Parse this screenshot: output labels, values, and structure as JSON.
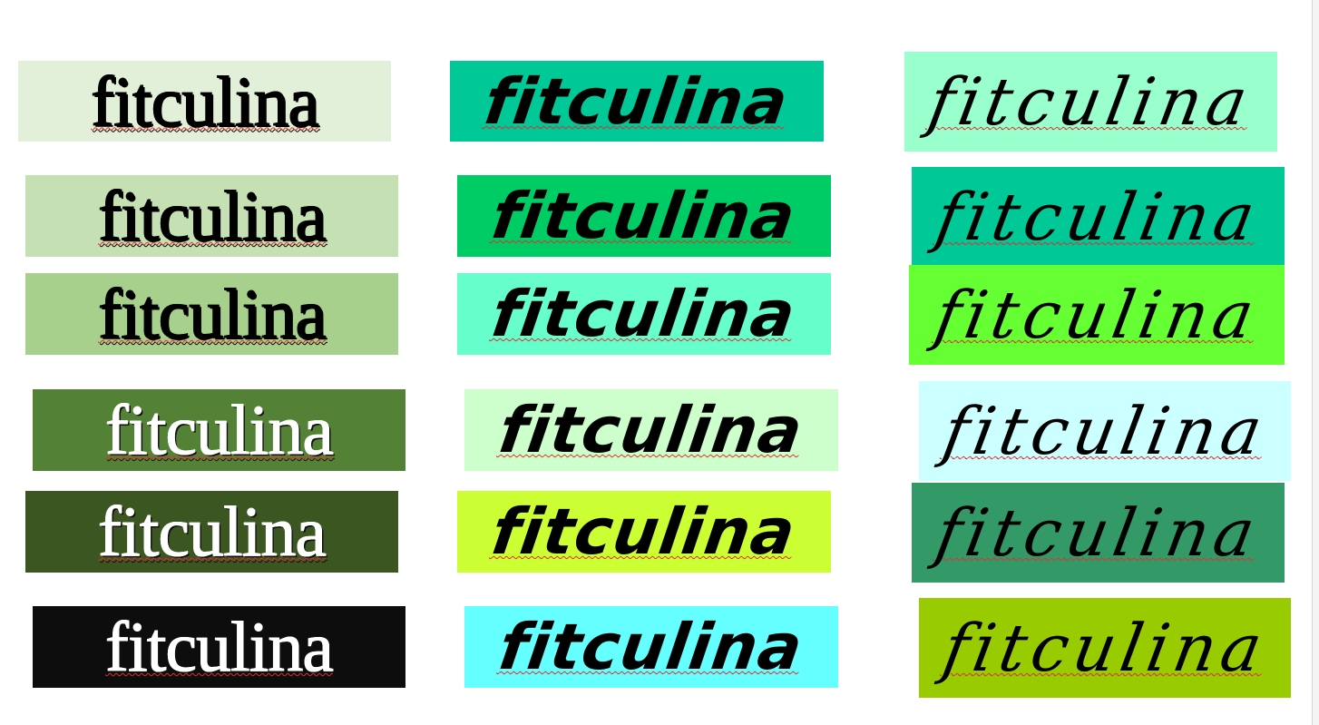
{
  "swatches": [
    {
      "column": 1,
      "row": 1,
      "label": "fitculina",
      "background": "#e2efd9",
      "text_color": "#000000"
    },
    {
      "column": 1,
      "row": 2,
      "label": "fitculina",
      "background": "#c5e0b3",
      "text_color": "#000000"
    },
    {
      "column": 1,
      "row": 3,
      "label": "fitculina",
      "background": "#a8d08d",
      "text_color": "#000000"
    },
    {
      "column": 1,
      "row": 4,
      "label": "fitculina",
      "background": "#538135",
      "text_color": "#ffffff"
    },
    {
      "column": 1,
      "row": 5,
      "label": "fitculina",
      "background": "#3c5622",
      "text_color": "#ffffff"
    },
    {
      "column": 1,
      "row": 6,
      "label": "fitculina",
      "background": "#0d0d0d",
      "text_color": "#ffffff"
    },
    {
      "column": 2,
      "row": 1,
      "label": "fitculina",
      "background": "#00c896",
      "text_color": "#000000"
    },
    {
      "column": 2,
      "row": 2,
      "label": "fitculina",
      "background": "#00cc66",
      "text_color": "#000000"
    },
    {
      "column": 2,
      "row": 3,
      "label": "fitculina",
      "background": "#66ffcc",
      "text_color": "#000000"
    },
    {
      "column": 2,
      "row": 4,
      "label": "fitculina",
      "background": "#ccffcc",
      "text_color": "#000000"
    },
    {
      "column": 2,
      "row": 5,
      "label": "fitculina",
      "background": "#ccff33",
      "text_color": "#000000"
    },
    {
      "column": 2,
      "row": 6,
      "label": "fitculina",
      "background": "#66ffff",
      "text_color": "#000000"
    },
    {
      "column": 3,
      "row": 1,
      "label": "fitculina",
      "background": "#99ffcc",
      "text_color": "#000000"
    },
    {
      "column": 3,
      "row": 2,
      "label": "fitculina",
      "background": "#00c896",
      "text_color": "#000000"
    },
    {
      "column": 3,
      "row": 3,
      "label": "fitculina",
      "background": "#66ff33",
      "text_color": "#000000"
    },
    {
      "column": 3,
      "row": 4,
      "label": "fitculina",
      "background": "#ccffff",
      "text_color": "#000000"
    },
    {
      "column": 3,
      "row": 5,
      "label": "fitculina",
      "background": "#339966",
      "text_color": "#000000"
    },
    {
      "column": 3,
      "row": 6,
      "label": "fitculina",
      "background": "#99cc00",
      "text_color": "#000000"
    }
  ]
}
